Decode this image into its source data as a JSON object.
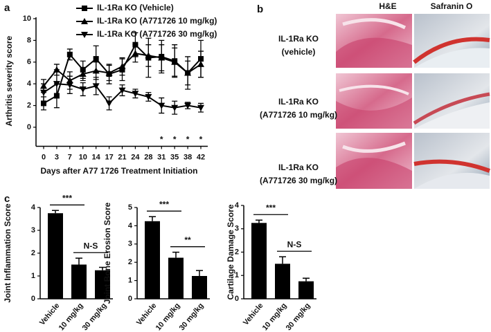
{
  "panel_labels": [
    "a",
    "b",
    "c"
  ],
  "histology": {
    "columns": [
      "H&E",
      "Safranin O"
    ],
    "rows": [
      [
        "IL-1Ra KO",
        "(vehicle)"
      ],
      [
        "IL-1Ra KO",
        "(A771726 10 mg/kg)"
      ],
      [
        "IL-1Ra KO",
        "(A771726 30 mg/kg)"
      ]
    ]
  },
  "chart_data": [
    {
      "type": "line",
      "ylabel": "Arthritis severity score",
      "xlabel": "Days after A77 1726 Treatment Initiation",
      "categories": [
        "0",
        "3",
        "7",
        "10",
        "14",
        "17",
        "21",
        "24",
        "28",
        "31",
        "35",
        "38",
        "42"
      ],
      "significance": [
        null,
        null,
        null,
        null,
        null,
        null,
        null,
        null,
        null,
        "*",
        "*",
        "*",
        "*"
      ],
      "ylim": [
        -1.5,
        10
      ],
      "yticks": [
        0,
        2,
        4,
        6,
        8,
        10
      ],
      "legend": "top",
      "series": [
        {
          "name": "IL-1Ra KO (Vehicle)",
          "marker": "square",
          "color": "#000000",
          "values": [
            2.2,
            2.9,
            6.7,
            5.3,
            6.3,
            4.9,
            5.3,
            7.6,
            6.4,
            6.5,
            6.1,
            5.0,
            6.3
          ],
          "errors": [
            0.6,
            1.1,
            0.5,
            0.8,
            1.2,
            0.9,
            1.0,
            1.1,
            1.8,
            1.5,
            1.5,
            1.5,
            1.7
          ]
        },
        {
          "name": "IL-1Ra KO (A771726 10 mg/kg)",
          "marker": "triangle",
          "color": "#000000",
          "values": [
            3.8,
            5.3,
            4.3,
            4.9,
            5.2,
            5.0,
            5.6,
            6.8,
            6.6,
            6.4,
            6.0,
            5.0,
            5.8
          ],
          "errors": [
            0.6,
            0.5,
            0.8,
            0.6,
            0.8,
            0.7,
            0.8,
            0.8,
            1.0,
            1.2,
            1.3,
            1.1,
            1.2
          ]
        },
        {
          "name": "IL-1Ra KO (A771726 30 mg/kg)",
          "marker": "triangle-down",
          "color": "#000000",
          "values": [
            3.2,
            4.0,
            3.9,
            3.5,
            3.8,
            2.2,
            3.4,
            3.1,
            2.8,
            2.0,
            1.8,
            2.0,
            1.8
          ],
          "errors": [
            0.8,
            1.3,
            0.8,
            0.6,
            0.8,
            0.6,
            0.5,
            0.4,
            0.4,
            0.7,
            0.6,
            0.3,
            0.4
          ]
        }
      ]
    },
    {
      "type": "bar",
      "ylabel": "Joint Inflammation Score",
      "categories": [
        "Vehicle",
        "10 mg/kg",
        "30 mg/kg"
      ],
      "values": [
        3.75,
        1.5,
        1.25
      ],
      "errors": [
        0.12,
        0.28,
        0.13
      ],
      "color": "#000000",
      "ylim": [
        0,
        4
      ],
      "yticks": [
        0,
        1,
        2,
        3,
        4
      ],
      "comparisons": [
        {
          "between": [
            "Vehicle",
            "10 mg/kg"
          ],
          "label": "***"
        },
        {
          "between": [
            "10 mg/kg",
            "30 mg/kg"
          ],
          "label": "N-S"
        }
      ]
    },
    {
      "type": "bar",
      "ylabel": "Joint Bone Erosion Score",
      "categories": [
        "Vehicle",
        "10 mg/kg",
        "30 mg/kg"
      ],
      "values": [
        4.25,
        2.25,
        1.25
      ],
      "errors": [
        0.25,
        0.3,
        0.3
      ],
      "color": "#000000",
      "ylim": [
        0,
        5
      ],
      "yticks": [
        0,
        1,
        2,
        3,
        4,
        5
      ],
      "comparisons": [
        {
          "between": [
            "Vehicle",
            "10 mg/kg"
          ],
          "label": "***"
        },
        {
          "between": [
            "10 mg/kg",
            "30 mg/kg"
          ],
          "label": "**"
        }
      ]
    },
    {
      "type": "bar",
      "ylabel": "Cartilage Damage Score",
      "categories": [
        "Vehicle",
        "10 mg/kg",
        "30 mg/kg"
      ],
      "values": [
        3.25,
        1.5,
        0.75
      ],
      "errors": [
        0.12,
        0.3,
        0.13
      ],
      "color": "#000000",
      "ylim": [
        0,
        4
      ],
      "yticks": [
        0,
        1,
        2,
        3,
        4
      ],
      "comparisons": [
        {
          "between": [
            "Vehicle",
            "10 mg/kg"
          ],
          "label": "***"
        },
        {
          "between": [
            "10 mg/kg",
            "30 mg/kg"
          ],
          "label": "N-S"
        }
      ]
    }
  ]
}
